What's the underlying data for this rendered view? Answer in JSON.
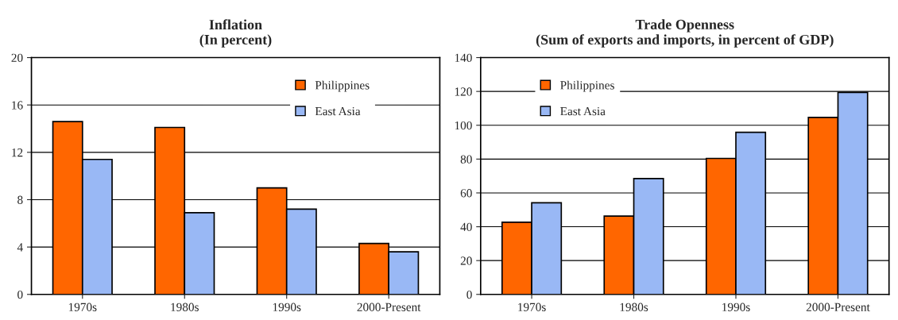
{
  "chart_data": [
    {
      "type": "bar",
      "title": "Inflation\n(In percent)",
      "categories": [
        "1970s",
        "1980s",
        "1990s",
        "2000-Present"
      ],
      "series": [
        {
          "name": "Philippines",
          "color": "#ff6600",
          "values": [
            14.6,
            14.1,
            9.0,
            4.3
          ]
        },
        {
          "name": "East Asia",
          "color": "#99b8f5",
          "values": [
            11.4,
            6.9,
            7.2,
            3.6
          ]
        }
      ],
      "ylim": [
        0,
        20
      ],
      "yticks": [
        0,
        4,
        8,
        12,
        16,
        20
      ],
      "grid": "y",
      "legend": "top right"
    },
    {
      "type": "bar",
      "title": "Trade Openness\n(Sum of exports and imports, in percent of GDP)",
      "categories": [
        "1970s",
        "1980s",
        "1990s",
        "2000-Present"
      ],
      "series": [
        {
          "name": "Philippines",
          "color": "#ff6600",
          "values": [
            42.7,
            46.3,
            80.4,
            104.6
          ]
        },
        {
          "name": "East Asia",
          "color": "#99b8f5",
          "values": [
            54.2,
            68.5,
            95.8,
            119.4
          ]
        }
      ],
      "ylim": [
        0,
        140
      ],
      "yticks": [
        0,
        20,
        40,
        60,
        80,
        100,
        120,
        140
      ],
      "grid": "y",
      "legend": "top left"
    }
  ]
}
